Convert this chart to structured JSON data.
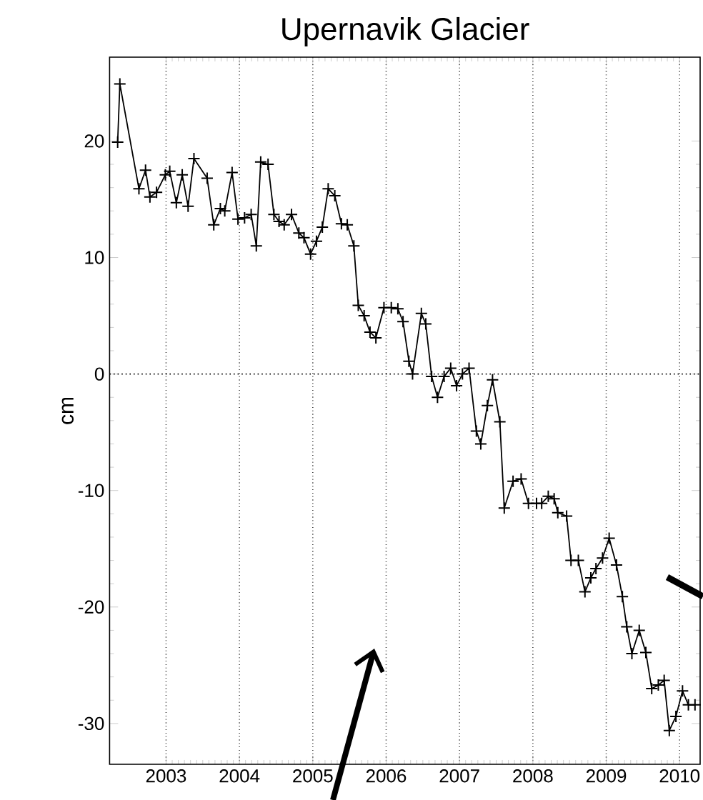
{
  "chart_data": {
    "type": "line",
    "title": "Upernavik Glacier",
    "ylabel": "cm",
    "x": [
      2002.34,
      2002.37,
      2002.63,
      2002.72,
      2002.78,
      2002.87,
      2002.99,
      2003.05,
      2003.14,
      2003.22,
      2003.3,
      2003.38,
      2003.56,
      2003.65,
      2003.74,
      2003.8,
      2003.9,
      2003.98,
      2004.07,
      2004.16,
      2004.23,
      2004.29,
      2004.39,
      2004.47,
      2004.54,
      2004.61,
      2004.71,
      2004.81,
      2004.88,
      2004.97,
      2005.05,
      2005.13,
      2005.21,
      2005.3,
      2005.39,
      2005.47,
      2005.56,
      2005.62,
      2005.7,
      2005.78,
      2005.86,
      2005.97,
      2006.07,
      2006.16,
      2006.23,
      2006.31,
      2006.36,
      2006.48,
      2006.54,
      2006.62,
      2006.7,
      2006.79,
      2006.88,
      2006.96,
      2007.04,
      2007.13,
      2007.23,
      2007.29,
      2007.38,
      2007.45,
      2007.55,
      2007.61,
      2007.73,
      2007.84,
      2007.94,
      2008.05,
      2008.12,
      2008.21,
      2008.29,
      2008.34,
      2008.46,
      2008.52,
      2008.62,
      2008.71,
      2008.79,
      2008.86,
      2008.95,
      2009.04,
      2009.14,
      2009.22,
      2009.28,
      2009.35,
      2009.45,
      2009.54,
      2009.62,
      2009.71,
      2009.79,
      2009.86,
      2009.95,
      2010.04,
      2010.12,
      2010.21
    ],
    "values": [
      19.9,
      24.9,
      15.9,
      17.5,
      15.2,
      15.6,
      17.1,
      17.4,
      14.7,
      17.1,
      14.4,
      18.5,
      16.8,
      12.8,
      14.2,
      14.0,
      17.3,
      13.3,
      13.4,
      13.7,
      11.0,
      18.2,
      18.0,
      13.7,
      13.1,
      12.8,
      13.7,
      12.1,
      11.7,
      10.3,
      11.4,
      12.6,
      15.9,
      15.3,
      12.9,
      12.8,
      11.0,
      5.9,
      5.0,
      3.6,
      3.1,
      5.7,
      5.7,
      5.6,
      4.5,
      1.1,
      0.0,
      5.2,
      4.3,
      -0.2,
      -2.0,
      -0.2,
      0.5,
      -1.0,
      0.0,
      0.5,
      -4.9,
      -6.0,
      -2.7,
      -0.5,
      -4.1,
      -11.5,
      -9.2,
      -9.0,
      -11.1,
      -11.1,
      -11.1,
      -10.5,
      -10.7,
      -11.9,
      -12.2,
      -16.0,
      -16.0,
      -18.7,
      -17.5,
      -16.7,
      -15.8,
      -14.1,
      -16.4,
      -19.1,
      -21.7,
      -24.0,
      -22.0,
      -23.9,
      -27.0,
      -26.7,
      -26.3,
      -30.6,
      -29.4,
      -27.2,
      -28.4,
      -28.4
    ],
    "color": "#000000",
    "marker": "cross",
    "line_style": "solid",
    "grid": "x",
    "xlim": [
      2002.23,
      2010.28
    ],
    "xticks": [
      2003,
      2004,
      2005,
      2006,
      2007,
      2008,
      2009,
      2010
    ],
    "ylim": [
      -33.5,
      27.2
    ],
    "yticks": [
      -30,
      -20,
      -10,
      0,
      10,
      20
    ],
    "ref_lines": [
      {
        "axis": "y",
        "value": 0,
        "line_style": "dotted"
      }
    ]
  }
}
